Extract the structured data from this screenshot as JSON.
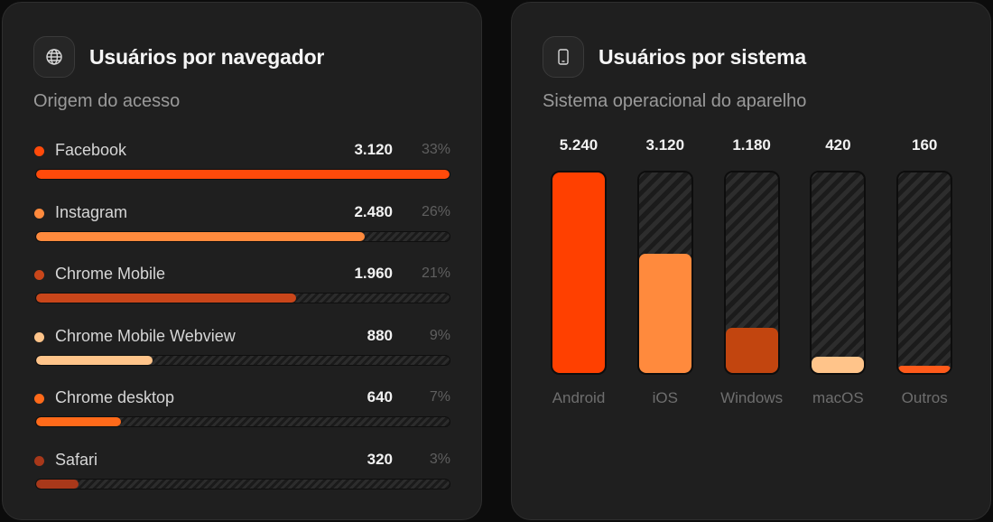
{
  "browsers_card": {
    "title": "Usuários por navegador",
    "subtitle": "Origem do acesso",
    "icon": "globe-icon"
  },
  "systems_card": {
    "title": "Usuários por sistema",
    "subtitle": "Sistema operacional do aparelho",
    "icon": "smartphone-icon"
  },
  "chart_data": [
    {
      "type": "bar",
      "orientation": "horizontal",
      "title": "Usuários por navegador",
      "subtitle": "Origem do acesso",
      "categories": [
        "Facebook",
        "Instagram",
        "Chrome Mobile",
        "Chrome Mobile Webview",
        "Chrome desktop",
        "Safari"
      ],
      "values": [
        3120,
        2480,
        1960,
        880,
        640,
        320
      ],
      "value_labels": [
        "3.120",
        "2.480",
        "1.960",
        "880",
        "640",
        "320"
      ],
      "percent_labels": [
        "33%",
        "26%",
        "21%",
        "9%",
        "7%",
        "3%"
      ],
      "colors": [
        "#ff4a0a",
        "#ff8a3d",
        "#c9461a",
        "#ffc48a",
        "#ff6a1a",
        "#a8381a"
      ],
      "xlim": [
        0,
        3120
      ],
      "grid": false
    },
    {
      "type": "bar",
      "orientation": "vertical",
      "title": "Usuários por sistema",
      "subtitle": "Sistema operacional do aparelho",
      "categories": [
        "Android",
        "iOS",
        "Windows",
        "macOS",
        "Outros"
      ],
      "values": [
        5240,
        3120,
        1180,
        420,
        160
      ],
      "value_labels": [
        "5.240",
        "3.120",
        "1.180",
        "420",
        "160"
      ],
      "colors": [
        "#ff4000",
        "#ff8a3d",
        "#c2450f",
        "#ffc48a",
        "#ff5a1a"
      ],
      "ylim": [
        0,
        5240
      ],
      "grid": false
    }
  ]
}
